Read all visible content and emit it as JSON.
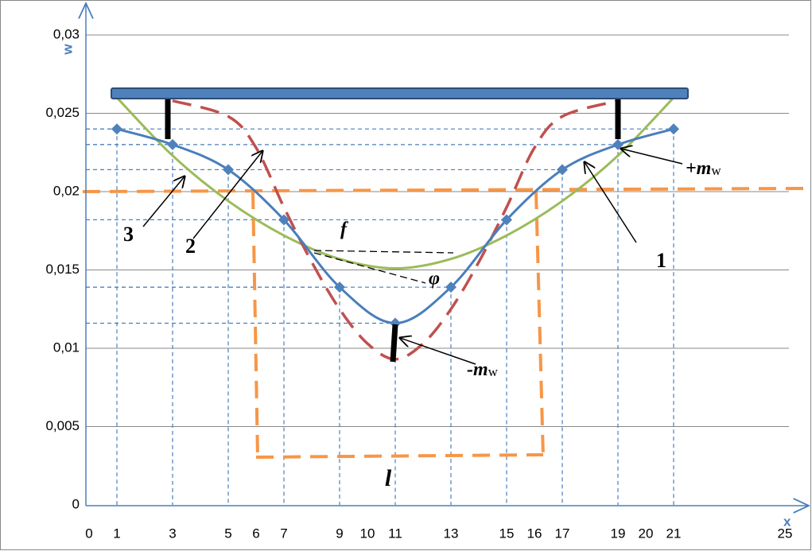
{
  "chart_data": {
    "type": "line",
    "xlabel": "x",
    "ylabel": "w",
    "xlim": [
      0,
      25.75
    ],
    "ylim": [
      0,
      0.03
    ],
    "xticks": [
      0,
      1,
      3,
      5,
      6,
      7,
      9,
      10,
      11,
      13,
      15,
      16,
      17,
      19,
      20,
      21,
      25
    ],
    "yticks": [
      0,
      {
        "value": 0.005,
        "label": "0,005"
      },
      {
        "value": 0.01,
        "label": "0,01"
      },
      {
        "value": 0.015,
        "label": "0,015"
      },
      {
        "value": 0.02,
        "label": "0,02"
      },
      {
        "value": 0.025,
        "label": "0,025"
      },
      {
        "value": 0.03,
        "label": "0,03"
      }
    ],
    "grid": true,
    "series": [
      {
        "name": "1",
        "color": "#4a7ebb",
        "markers": true,
        "guides": true,
        "x": [
          1,
          3,
          5,
          7,
          9,
          11,
          13,
          15,
          17,
          19,
          21
        ],
        "values": [
          0.024,
          0.023,
          0.0214,
          0.0182,
          0.0139,
          0.0116,
          0.0139,
          0.0182,
          0.0214,
          0.023,
          0.024
        ]
      },
      {
        "name": "2",
        "color": "#c0504d",
        "dashed": true,
        "x": [
          3,
          5,
          6,
          7,
          8,
          9,
          10,
          11,
          12,
          13,
          14,
          15,
          16,
          17,
          19
        ],
        "values": [
          0.0258,
          0.0248,
          0.0228,
          0.019,
          0.0155,
          0.0125,
          0.0103,
          0.0093,
          0.0103,
          0.0125,
          0.0155,
          0.019,
          0.0228,
          0.0248,
          0.0258
        ]
      },
      {
        "name": "3",
        "color": "#9bbb59",
        "x": [
          1,
          3,
          5,
          7,
          9,
          11,
          13,
          15,
          17,
          19,
          21
        ],
        "values": [
          0.026,
          0.0223,
          0.0194,
          0.0172,
          0.0157,
          0.0151,
          0.0157,
          0.0172,
          0.0194,
          0.0223,
          0.026
        ]
      }
    ],
    "annotations": [
      "f",
      "φ",
      "l"
    ],
    "moments": [
      {
        "text": "+m",
        "sub": "w"
      },
      {
        "text": "-m",
        "sub": "w"
      }
    ]
  }
}
